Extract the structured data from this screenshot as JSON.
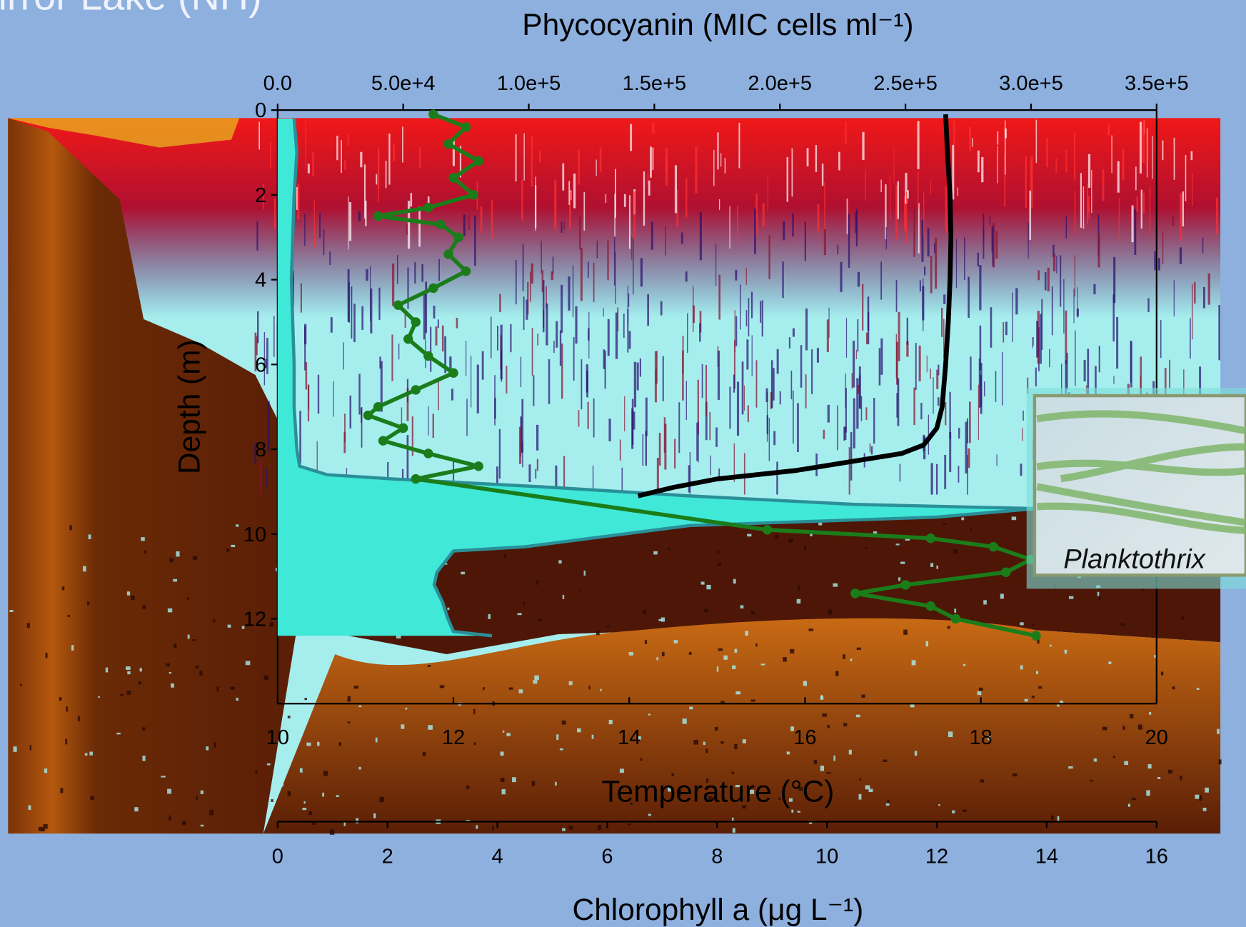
{
  "chart_data": {
    "type": "profile",
    "title": "Mirror Lake (NH)",
    "ylabel": "Depth (m)",
    "xlabel": "Chlorophyll a (μg L⁻¹)",
    "x2label": "Phycocyanin (MIC cells ml⁻¹)",
    "x3label": "Temperature (°C)",
    "ylim": [
      0,
      14
    ],
    "yticks": [
      0,
      2,
      4,
      6,
      8,
      10,
      12
    ],
    "xlim": [
      0,
      16
    ],
    "xticks": [
      0,
      2,
      4,
      6,
      8,
      10,
      12,
      14,
      16
    ],
    "x2lim": [
      0,
      350000
    ],
    "x2ticks": [
      {
        "value": 0,
        "label": "0.0"
      },
      {
        "value": 50000,
        "label": "5.0e+4"
      },
      {
        "value": 100000,
        "label": "1.0e+5"
      },
      {
        "value": 150000,
        "label": "1.5e+5"
      },
      {
        "value": 200000,
        "label": "2.0e+5"
      },
      {
        "value": 250000,
        "label": "2.5e+5"
      },
      {
        "value": 300000,
        "label": "3.0e+5"
      },
      {
        "value": 350000,
        "label": "3.5e+5"
      }
    ],
    "x3lim": [
      10,
      20
    ],
    "x3ticks": [
      10,
      12,
      14,
      16,
      18,
      20
    ],
    "series": [
      {
        "axis": "x",
        "color": "#40e8d8",
        "fill": true,
        "depths": [
          0.2,
          1,
          2,
          4,
          6,
          7,
          8,
          8.4,
          8.6,
          8.7,
          8.9,
          9.1,
          9.3,
          9.4,
          9.6,
          9.8,
          10.3,
          10.4,
          10.9,
          11.2,
          11.6,
          12.0,
          12.3,
          12.4
        ],
        "values": [
          0.3,
          0.35,
          0.3,
          0.25,
          0.3,
          0.3,
          0.35,
          0.4,
          0.9,
          2.1,
          5.0,
          7.5,
          10.5,
          13.8,
          12.0,
          7.5,
          4.5,
          3.2,
          2.9,
          2.85,
          3.0,
          3.1,
          3.2,
          3.9
        ]
      },
      {
        "axis": "x3",
        "color": "#000000",
        "depths": [
          0.1,
          1,
          2,
          3,
          4,
          5,
          6,
          7,
          7.5,
          7.9,
          8.1,
          8.3,
          8.5,
          8.7,
          8.9,
          9.1
        ],
        "values": [
          17.6,
          17.62,
          17.65,
          17.66,
          17.65,
          17.63,
          17.6,
          17.56,
          17.5,
          17.35,
          17.1,
          16.5,
          15.9,
          15.0,
          14.5,
          14.1
        ]
      },
      {
        "axis": "x2",
        "color": "#1a7d1a",
        "markers": true,
        "depths": [
          0.1,
          0.4,
          0.8,
          1.2,
          1.6,
          2.0,
          2.3,
          2.5,
          2.7,
          3.0,
          3.4,
          3.8,
          4.2,
          4.6,
          5.0,
          5.4,
          5.8,
          6.2,
          6.6,
          7.0,
          7.2,
          7.5,
          7.8,
          8.1,
          8.4,
          8.7,
          9.9,
          10.1,
          10.3,
          10.6,
          10.9,
          11.2,
          11.4,
          11.7,
          12.0,
          12.4
        ],
        "values": [
          62000,
          75000,
          68000,
          80000,
          70000,
          78000,
          60000,
          40000,
          65000,
          72000,
          68000,
          75000,
          62000,
          48000,
          55000,
          52000,
          60000,
          70000,
          55000,
          40000,
          36000,
          50000,
          42000,
          60000,
          80000,
          55000,
          195000,
          260000,
          285000,
          300000,
          290000,
          250000,
          230000,
          260000,
          270000,
          302000
        ]
      }
    ],
    "annotations": [
      "Planktothrix"
    ]
  }
}
